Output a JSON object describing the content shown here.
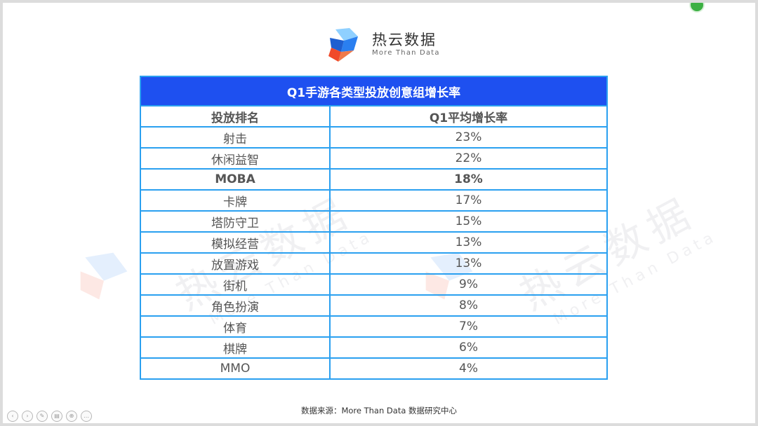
{
  "brand": {
    "name_cn": "热云数据",
    "name_en": "More Than Data"
  },
  "table": {
    "title": "Q1手游各类型投放创意组增长率",
    "headers": [
      "投放排名",
      "Q1平均增长率"
    ],
    "rows": [
      {
        "category": "射击",
        "rate": "23%",
        "bold": false
      },
      {
        "category": "休闲益智",
        "rate": "22%",
        "bold": false
      },
      {
        "category": "MOBA",
        "rate": "18%",
        "bold": true
      },
      {
        "category": "卡牌",
        "rate": "17%",
        "bold": false
      },
      {
        "category": "塔防守卫",
        "rate": "15%",
        "bold": false
      },
      {
        "category": "模拟经营",
        "rate": "13%",
        "bold": false
      },
      {
        "category": "放置游戏",
        "rate": "13%",
        "bold": false
      },
      {
        "category": "街机",
        "rate": "9%",
        "bold": false
      },
      {
        "category": "角色扮演",
        "rate": "8%",
        "bold": false
      },
      {
        "category": "体育",
        "rate": "7%",
        "bold": false
      },
      {
        "category": "棋牌",
        "rate": "6%",
        "bold": false
      },
      {
        "category": "MMO",
        "rate": "4%",
        "bold": false
      }
    ]
  },
  "footer": {
    "source": "数据来源：More Than Data 数据研究中心"
  },
  "controls": [
    {
      "icon": "prev-slide-icon",
      "glyph": "‹"
    },
    {
      "icon": "next-slide-icon",
      "glyph": "›"
    },
    {
      "icon": "pen-icon",
      "glyph": "✎"
    },
    {
      "icon": "slides-icon",
      "glyph": "▤"
    },
    {
      "icon": "zoom-icon",
      "glyph": "⊕"
    },
    {
      "icon": "more-icon",
      "glyph": "…"
    }
  ],
  "colors": {
    "title_bar": "#1e50f0",
    "border": "#2aa0f0",
    "logo_blue": "#2a7ff0",
    "logo_red": "#f04a2a",
    "logo_light": "#8fd0ff"
  }
}
